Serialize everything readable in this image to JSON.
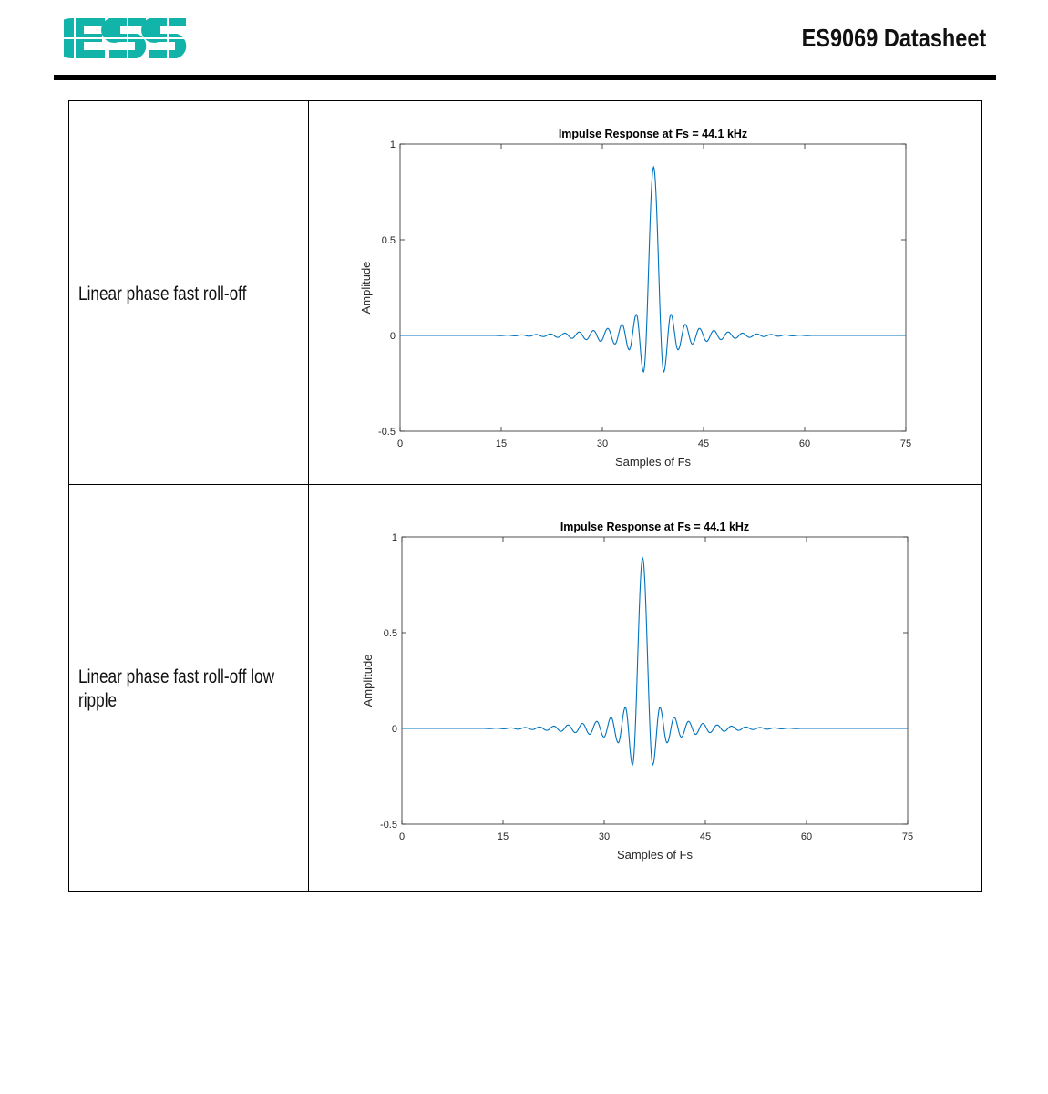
{
  "header": {
    "logo_text": "ESS",
    "title": "ES9069 Datasheet",
    "brand_color": "#12b3a8"
  },
  "rows": [
    {
      "label": "Linear phase fast roll-off"
    },
    {
      "label": "Linear phase fast roll-off low ripple"
    }
  ],
  "chart_data": [
    {
      "type": "line",
      "title": "Impulse Response at Fs = 44.1 kHz",
      "xlabel": "Samples of Fs",
      "ylabel": "Amplitude",
      "xlim": [
        0,
        75
      ],
      "ylim": [
        -0.5,
        1
      ],
      "xticks": [
        0,
        15,
        30,
        45,
        60,
        75
      ],
      "yticks": [
        -0.5,
        0,
        0.5,
        1
      ],
      "ytick_labels": [
        "-0.5",
        "0",
        "0.5",
        "1"
      ],
      "grid": false,
      "line_color": "#0072bd",
      "points": [
        [
          0,
          0
        ],
        [
          13.84,
          0.0005
        ],
        [
          14.9,
          -0.001
        ],
        [
          15.96,
          0.0015
        ],
        [
          17.02,
          -0.002
        ],
        [
          18.08,
          0.003
        ],
        [
          19.14,
          -0.004
        ],
        [
          20.2,
          0.005
        ],
        [
          21.26,
          -0.006
        ],
        [
          22.32,
          0.008
        ],
        [
          23.38,
          -0.01
        ],
        [
          24.44,
          0.012
        ],
        [
          25.5,
          -0.015
        ],
        [
          26.56,
          0.018
        ],
        [
          27.62,
          -0.022
        ],
        [
          28.68,
          0.026
        ],
        [
          29.74,
          -0.031
        ],
        [
          30.8,
          0.037
        ],
        [
          31.86,
          -0.045
        ],
        [
          32.92,
          0.058
        ],
        [
          33.98,
          -0.075
        ],
        [
          35.04,
          0.11
        ],
        [
          36.1,
          -0.19
        ],
        [
          37.6,
          0.88
        ],
        [
          39.1,
          -0.19
        ],
        [
          40.16,
          0.11
        ],
        [
          41.22,
          -0.075
        ],
        [
          42.28,
          0.058
        ],
        [
          43.34,
          -0.045
        ],
        [
          44.4,
          0.037
        ],
        [
          45.46,
          -0.031
        ],
        [
          46.52,
          0.026
        ],
        [
          47.58,
          -0.022
        ],
        [
          48.64,
          0.018
        ],
        [
          49.7,
          -0.015
        ],
        [
          50.76,
          0.012
        ],
        [
          51.82,
          -0.01
        ],
        [
          52.88,
          0.008
        ],
        [
          53.94,
          -0.006
        ],
        [
          55.0,
          0.005
        ],
        [
          56.06,
          -0.004
        ],
        [
          57.12,
          0.003
        ],
        [
          58.18,
          -0.002
        ],
        [
          59.24,
          0.0015
        ],
        [
          60.3,
          -0.001
        ],
        [
          61.36,
          0.0005
        ],
        [
          75,
          0
        ]
      ]
    },
    {
      "type": "line",
      "title": "Impulse Response at Fs = 44.1 kHz",
      "xlabel": "Samples of Fs",
      "ylabel": "Amplitude",
      "xlim": [
        0,
        75
      ],
      "ylim": [
        -0.5,
        1
      ],
      "xticks": [
        0,
        15,
        30,
        45,
        60,
        75
      ],
      "yticks": [
        -0.5,
        0,
        0.5,
        1
      ],
      "ytick_labels": [
        "-0.5",
        "0",
        "0.5",
        "1"
      ],
      "grid": false,
      "line_color": "#0072bd",
      "points": [
        [
          0,
          0
        ],
        [
          11.94,
          0.0005
        ],
        [
          13.0,
          -0.001
        ],
        [
          14.06,
          0.0015
        ],
        [
          15.12,
          -0.002
        ],
        [
          16.18,
          0.003
        ],
        [
          17.24,
          -0.004
        ],
        [
          18.3,
          0.005
        ],
        [
          19.36,
          -0.006
        ],
        [
          20.42,
          0.008
        ],
        [
          21.48,
          -0.01
        ],
        [
          22.54,
          0.012
        ],
        [
          23.6,
          -0.015
        ],
        [
          24.66,
          0.018
        ],
        [
          25.72,
          -0.022
        ],
        [
          26.78,
          0.026
        ],
        [
          27.84,
          -0.031
        ],
        [
          28.9,
          0.037
        ],
        [
          29.96,
          -0.045
        ],
        [
          31.02,
          0.058
        ],
        [
          32.08,
          -0.075
        ],
        [
          33.14,
          0.11
        ],
        [
          34.2,
          -0.19
        ],
        [
          35.7,
          0.89
        ],
        [
          37.2,
          -0.19
        ],
        [
          38.26,
          0.11
        ],
        [
          39.32,
          -0.075
        ],
        [
          40.38,
          0.058
        ],
        [
          41.44,
          -0.045
        ],
        [
          42.5,
          0.037
        ],
        [
          43.56,
          -0.031
        ],
        [
          44.62,
          0.026
        ],
        [
          45.68,
          -0.022
        ],
        [
          46.74,
          0.018
        ],
        [
          47.8,
          -0.015
        ],
        [
          48.86,
          0.012
        ],
        [
          49.92,
          -0.01
        ],
        [
          50.98,
          0.008
        ],
        [
          52.04,
          -0.006
        ],
        [
          53.1,
          0.005
        ],
        [
          54.16,
          -0.004
        ],
        [
          55.22,
          0.003
        ],
        [
          56.28,
          -0.002
        ],
        [
          57.34,
          0.0015
        ],
        [
          58.4,
          -0.001
        ],
        [
          59.46,
          0.0005
        ],
        [
          75,
          0
        ]
      ]
    }
  ]
}
